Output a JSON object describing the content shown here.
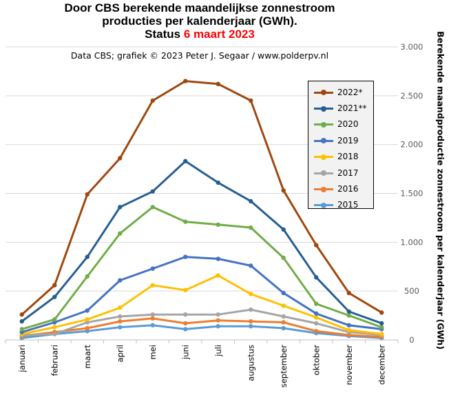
{
  "header": {
    "title_line1": "Door CBS berekende maandelijkse  zonnestroom",
    "title_line2": "producties  per kalenderjaar (GWh).",
    "title_line3_prefix": "Status ",
    "title_line3_date": "6 maart 2023",
    "subtitle": "Data CBS;  grafiek © 2023 Peter J. Segaar / www.polderpv.nl",
    "accent_color": "#ff0000"
  },
  "chart_data": {
    "type": "line",
    "title": "Door CBS berekende maandelijkse  zonnestroom producties  per kalenderjaar (GWh). Status 6 maart 2023",
    "xlabel": "",
    "ylabel": "Berekende maandproductie  zonnestroom  per kalenderjaar (GWh)",
    "categories": [
      "januari",
      "februari",
      "maart",
      "april",
      "mei",
      "juni",
      "juli",
      "augustus",
      "september",
      "oktober",
      "november",
      "december"
    ],
    "ylim": [
      0,
      3000
    ],
    "yticks": [
      0,
      500,
      1000,
      1500,
      2000,
      2500,
      3000
    ],
    "ytick_labels": [
      "0",
      "500",
      "1.000",
      "1.500",
      "2.000",
      "2.500",
      "3.000"
    ],
    "y_axis_side": "right",
    "grid": "horizontal",
    "legend_position": "top-right",
    "series": [
      {
        "name": "2022*",
        "color": "#9e480e",
        "values": [
          260,
          560,
          1490,
          1860,
          2450,
          2650,
          2620,
          2450,
          1530,
          970,
          480,
          280
        ]
      },
      {
        "name": "2021**",
        "color": "#255e91",
        "values": [
          190,
          440,
          850,
          1360,
          1520,
          1830,
          1610,
          1420,
          1130,
          640,
          290,
          170
        ]
      },
      {
        "name": "2020",
        "color": "#70ad47",
        "values": [
          110,
          210,
          650,
          1090,
          1360,
          1210,
          1180,
          1150,
          840,
          370,
          250,
          130
        ]
      },
      {
        "name": "2019",
        "color": "#4472c4",
        "values": [
          80,
          180,
          300,
          610,
          730,
          850,
          830,
          760,
          480,
          270,
          150,
          110
        ]
      },
      {
        "name": "2018",
        "color": "#ffc000",
        "values": [
          60,
          130,
          210,
          330,
          560,
          510,
          660,
          470,
          350,
          230,
          100,
          60
        ]
      },
      {
        "name": "2017",
        "color": "#a5a5a5",
        "values": [
          50,
          60,
          180,
          240,
          260,
          260,
          260,
          310,
          240,
          170,
          80,
          50
        ]
      },
      {
        "name": "2016",
        "color": "#ed7d31",
        "values": [
          40,
          80,
          120,
          190,
          220,
          170,
          200,
          190,
          180,
          90,
          50,
          30
        ]
      },
      {
        "name": "2015",
        "color": "#5b9bd5",
        "values": [
          20,
          60,
          90,
          130,
          150,
          110,
          140,
          140,
          120,
          70,
          40,
          20
        ]
      }
    ]
  }
}
